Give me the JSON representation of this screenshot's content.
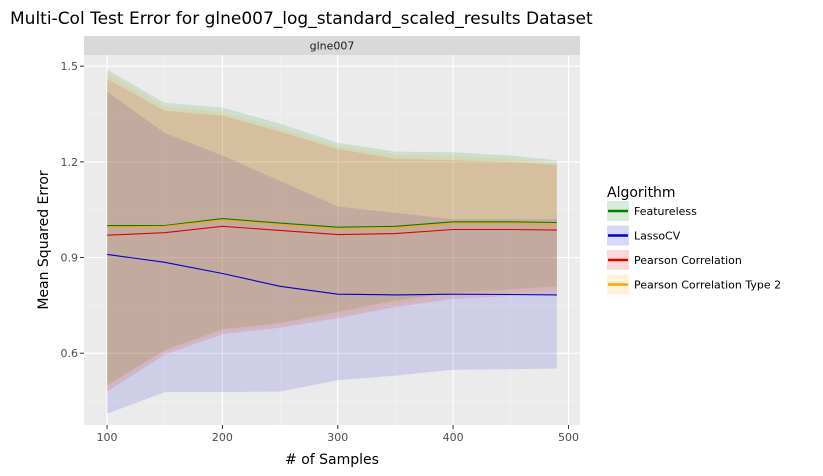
{
  "chart_data": {
    "type": "line",
    "title": "Multi-Col Test Error for glne007_log_standard_scaled_results Dataset",
    "facet_label": "glne007",
    "xlabel": "# of Samples",
    "ylabel": "Mean Squared Error",
    "xlim": [
      80,
      510
    ],
    "ylim": [
      0.375,
      1.535
    ],
    "x_ticks": [
      100,
      200,
      300,
      400,
      500
    ],
    "y_ticks": [
      0.6,
      0.9,
      1.2,
      1.5
    ],
    "y_tick_labels": [
      "0.6",
      "0.9",
      "1.2",
      "1.5"
    ],
    "grid": true,
    "legend": {
      "title": "Algorithm",
      "position": "right"
    },
    "x": [
      100,
      150,
      200,
      250,
      300,
      350,
      400,
      450,
      490
    ],
    "series": [
      {
        "name": "Featureless",
        "color": "#008000",
        "mean": [
          1.0,
          1.0,
          1.022,
          1.008,
          0.995,
          0.998,
          1.012,
          1.012,
          1.01
        ],
        "upper": [
          1.49,
          1.385,
          1.37,
          1.32,
          1.26,
          1.232,
          1.23,
          1.22,
          1.205
        ],
        "lower": [
          0.5,
          0.61,
          0.675,
          0.695,
          0.73,
          0.765,
          0.79,
          0.8,
          0.81
        ]
      },
      {
        "name": "LassoCV",
        "color": "#0000cc",
        "mean": [
          0.91,
          0.885,
          0.85,
          0.81,
          0.785,
          0.783,
          0.785,
          0.784,
          0.783
        ],
        "upper": [
          1.42,
          1.29,
          1.22,
          1.14,
          1.06,
          1.04,
          1.02,
          1.02,
          1.02
        ],
        "lower": [
          0.41,
          0.478,
          0.478,
          0.48,
          0.515,
          0.53,
          0.548,
          0.55,
          0.552
        ]
      },
      {
        "name": "Pearson Correlation",
        "color": "#e00000",
        "mean": [
          0.97,
          0.978,
          0.998,
          0.985,
          0.972,
          0.975,
          0.988,
          0.988,
          0.986
        ],
        "upper": [
          1.46,
          1.36,
          1.345,
          1.295,
          1.24,
          1.21,
          1.205,
          1.2,
          1.19
        ],
        "lower": [
          0.48,
          0.595,
          0.66,
          0.68,
          0.71,
          0.745,
          0.77,
          0.78,
          0.785
        ]
      },
      {
        "name": "Pearson Correlation Type 2",
        "color": "#ffa500",
        "mean": [
          0.995,
          0.998,
          1.018,
          1.003,
          0.99,
          0.993,
          1.007,
          1.007,
          1.004
        ],
        "upper": [
          1.48,
          1.372,
          1.355,
          1.305,
          1.25,
          1.222,
          1.218,
          1.21,
          1.195
        ],
        "lower": [
          0.495,
          0.605,
          0.67,
          0.69,
          0.72,
          0.755,
          0.78,
          0.79,
          0.8
        ]
      }
    ]
  }
}
